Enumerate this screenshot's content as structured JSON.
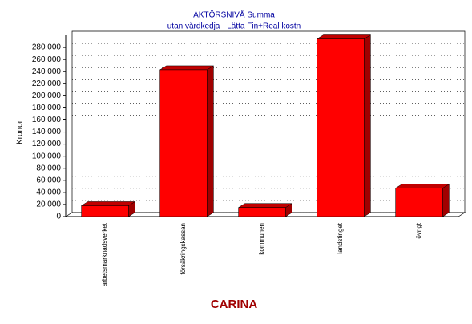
{
  "chart_data": {
    "type": "bar",
    "title": "AKTÖRSNIVÅ  Summa",
    "subtitle": "utan vårdkedja - Lätta Fin+Real kostn",
    "y_label": "Kronor",
    "x_label": "CARINA",
    "categories": [
      "arbetsmarknadsverket",
      "försäkringskassan",
      "kommunen",
      "landstinget",
      "övrigt"
    ],
    "values": [
      18000,
      243000,
      15000,
      294000,
      47000
    ],
    "color": "#ff0000",
    "ylim": [
      0,
      300000
    ],
    "yticks": [
      0,
      {
        "value": 20000,
        "label": "20 000"
      },
      {
        "value": 40000,
        "label": "40 000"
      },
      {
        "value": 60000,
        "label": "60 000"
      },
      {
        "value": 80000,
        "label": "80 000"
      },
      {
        "value": 100000,
        "label": "100 000"
      },
      {
        "value": 120000,
        "label": "120 000"
      },
      {
        "value": 140000,
        "label": "140 000"
      },
      {
        "value": 160000,
        "label": "160 000"
      },
      {
        "value": 180000,
        "label": "180 000"
      },
      {
        "value": 200000,
        "label": "200 000"
      },
      {
        "value": 220000,
        "label": "220 000"
      },
      {
        "value": 240000,
        "label": "240 000"
      },
      {
        "value": 260000,
        "label": "260 000"
      },
      {
        "value": 280000,
        "label": "280 000"
      }
    ],
    "grid": true
  }
}
